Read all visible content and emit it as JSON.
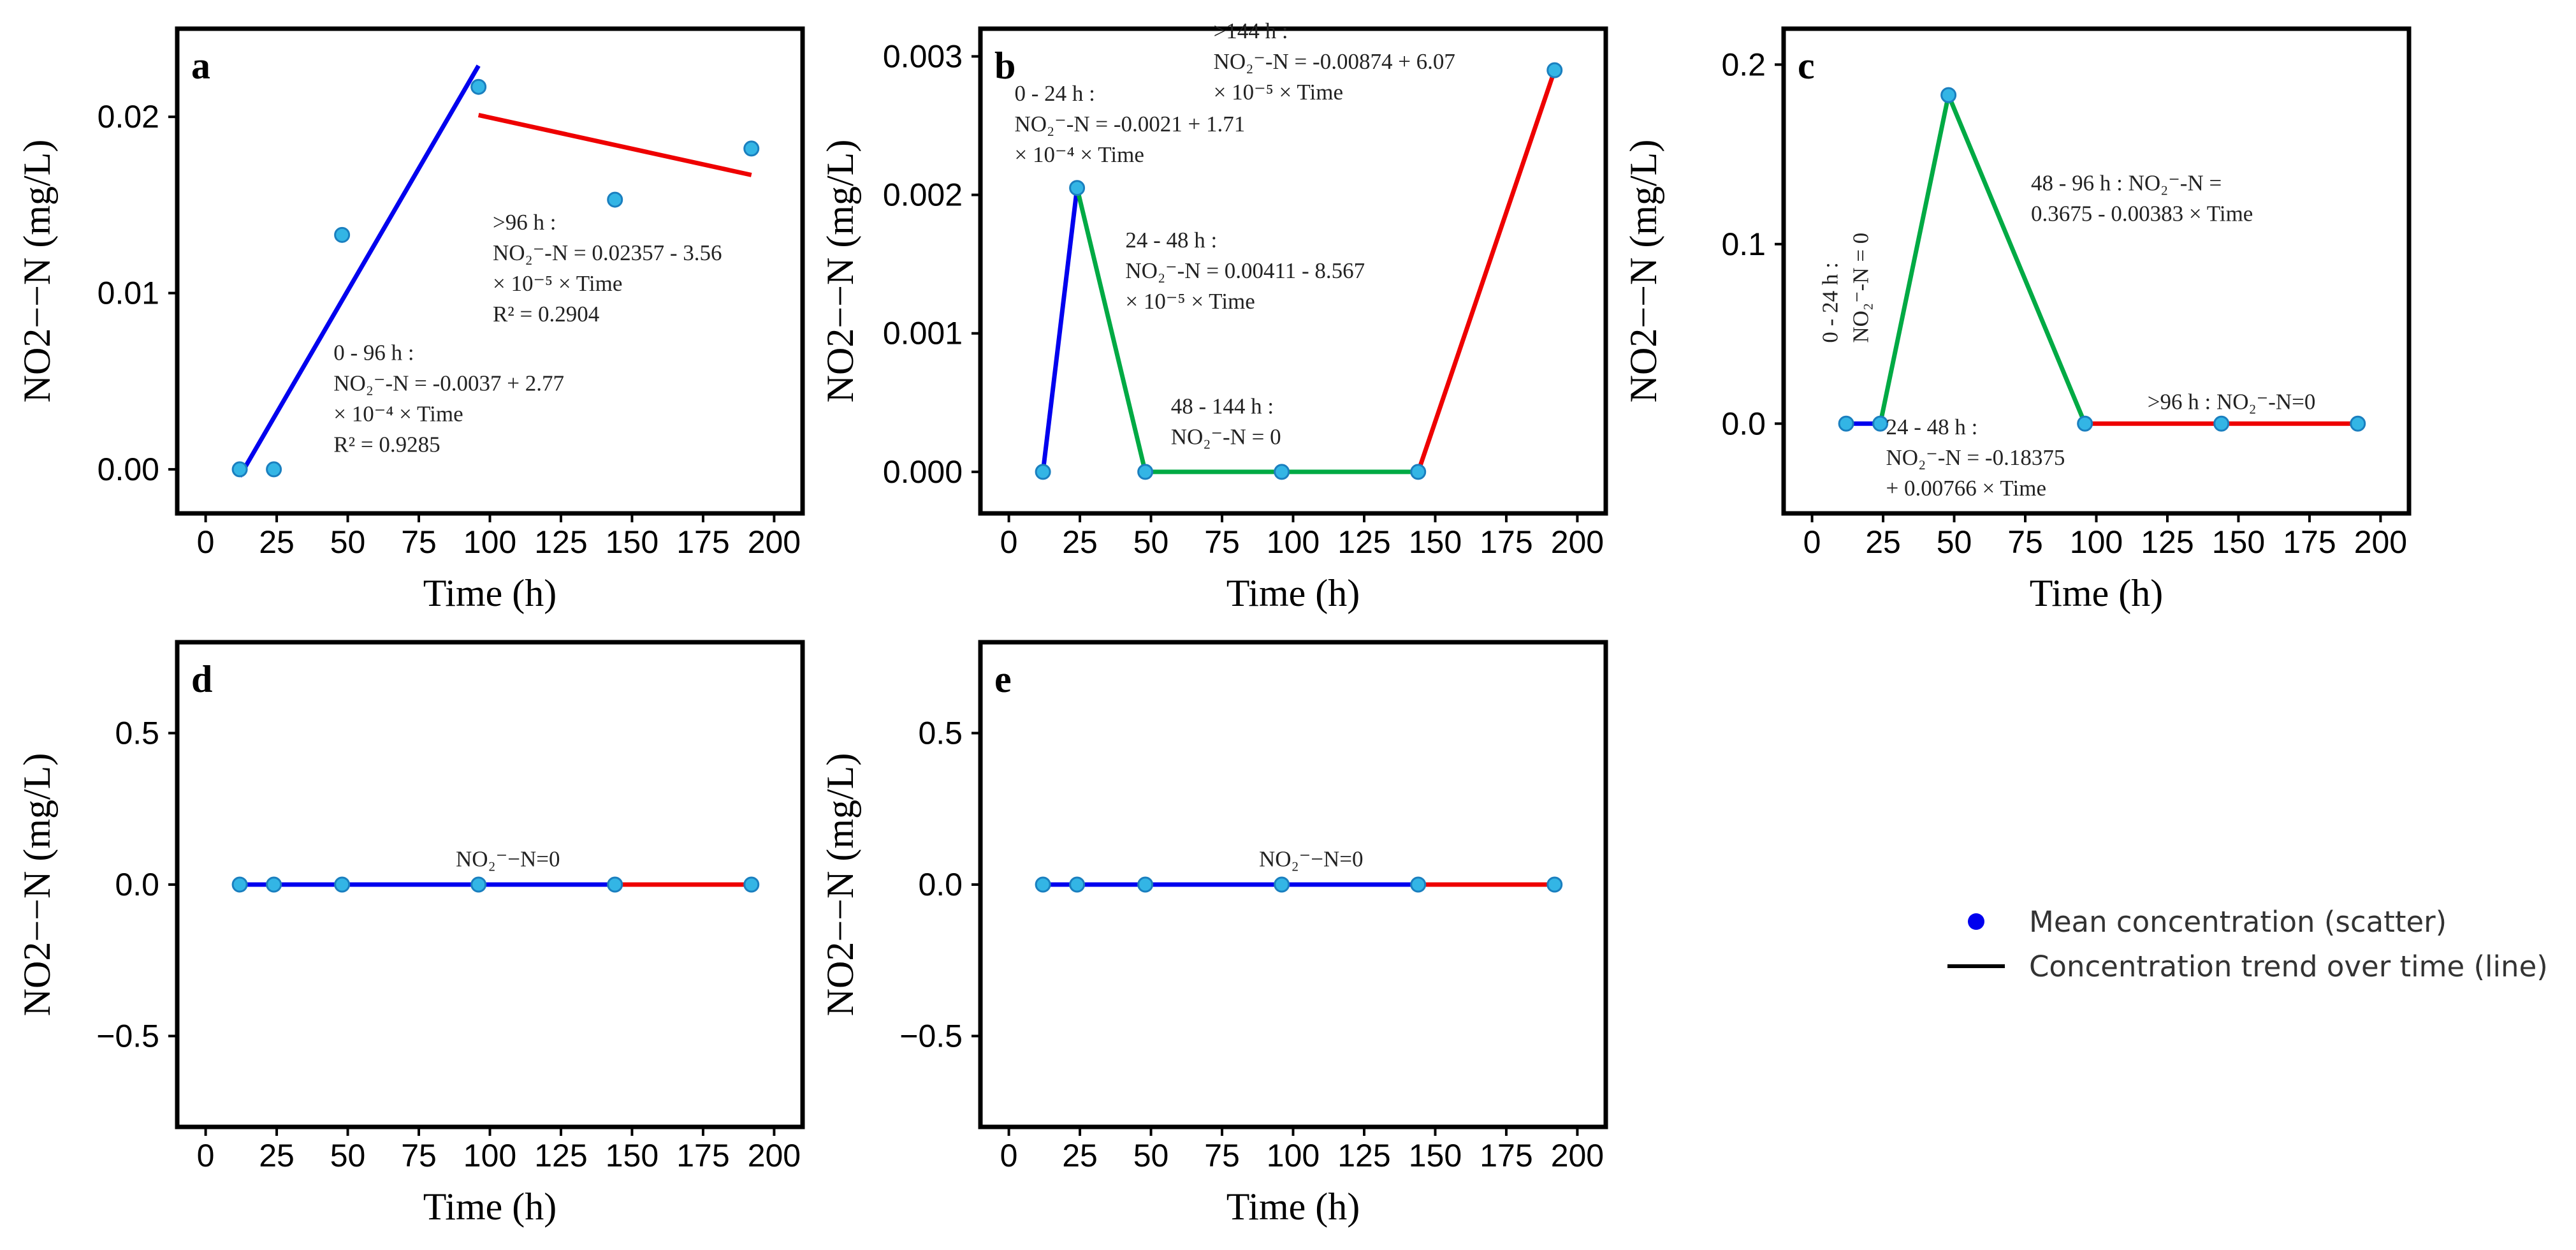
{
  "chart_data": [
    {
      "id": "a",
      "type": "line",
      "panel_label": "a",
      "xlabel": "Time (h)",
      "ylabel": "NO2−−N (mg/L)",
      "xlim": [
        -10,
        210
      ],
      "ylim": [
        -0.0025,
        0.025
      ],
      "xticks": [
        0,
        25,
        50,
        75,
        100,
        125,
        150,
        175,
        200
      ],
      "yticks": [
        0.0,
        0.01,
        0.02
      ],
      "ytick_labels": [
        "0.00",
        "0.01",
        "0.02"
      ],
      "points": {
        "x": [
          12,
          24,
          48,
          96,
          144,
          192
        ],
        "y": [
          0.0,
          0.0,
          0.0133,
          0.0217,
          0.0153,
          0.0182
        ]
      },
      "segments": [
        {
          "color": "#0000ee",
          "x": [
            12,
            96
          ],
          "y": [
            -0.0004,
            0.0229
          ]
        },
        {
          "color": "#ee0000",
          "x": [
            96,
            192
          ],
          "y": [
            0.0201,
            0.0167
          ]
        }
      ],
      "annotations": [
        {
          "lines": [
            "0 - 96 h :",
            "NO₂⁻-N = -0.0037 + 2.77",
            "× 10⁻⁴ × Time",
            "R² = 0.9285"
          ],
          "x": 45,
          "y": 0.0062
        },
        {
          "lines": [
            ">96 h :",
            "NO₂⁻-N = 0.02357 - 3.56",
            "× 10⁻⁵ × Time",
            "R² = 0.2904"
          ],
          "x": 101,
          "y": 0.0136
        }
      ]
    },
    {
      "id": "b",
      "type": "line",
      "panel_label": "b",
      "xlabel": "Time (h)",
      "ylabel": "NO2−−N (mg/L)",
      "xlim": [
        -10,
        210
      ],
      "ylim": [
        -0.0003,
        0.0032
      ],
      "xticks": [
        0,
        25,
        50,
        75,
        100,
        125,
        150,
        175,
        200
      ],
      "yticks": [
        0.0,
        0.001,
        0.002,
        0.003
      ],
      "ytick_labels": [
        "0.000",
        "0.001",
        "0.002",
        "0.003"
      ],
      "points": {
        "x": [
          12,
          24,
          48,
          96,
          144,
          192
        ],
        "y": [
          0.0,
          0.00205,
          0.0,
          0.0,
          0.0,
          0.0029
        ]
      },
      "segments": [
        {
          "color": "#0000ee",
          "x": [
            12,
            24
          ],
          "y": [
            0.0,
            0.00205
          ]
        },
        {
          "color": "#00aa44",
          "x": [
            24,
            48,
            96,
            144
          ],
          "y": [
            0.00205,
            0.0,
            0.0,
            0.0
          ]
        },
        {
          "color": "#ee0000",
          "x": [
            144,
            192
          ],
          "y": [
            0.0,
            0.0029
          ]
        }
      ],
      "annotations": [
        {
          "lines": [
            "0 - 24 h :",
            "NO₂⁻-N = -0.0021 + 1.71",
            "× 10⁻⁴ × Time"
          ],
          "x": 2,
          "y": 0.00268
        },
        {
          "lines": [
            ">144 h :",
            "NO₂⁻-N = -0.00874 + 6.07",
            "× 10⁻⁵ × Time"
          ],
          "x": 72,
          "y": 0.00313
        },
        {
          "lines": [
            "24 - 48 h :",
            "NO₂⁻-N = 0.00411 - 8.567",
            "× 10⁻⁵ × Time"
          ],
          "x": 41,
          "y": 0.00162
        },
        {
          "lines": [
            "48 - 144 h :",
            "NO₂⁻-N = 0"
          ],
          "x": 57,
          "y": 0.00042
        }
      ]
    },
    {
      "id": "c",
      "type": "line",
      "panel_label": "c",
      "xlabel": "Time (h)",
      "ylabel": "NO2−−N (mg/L)",
      "xlim": [
        -10,
        210
      ],
      "ylim": [
        -0.05,
        0.22
      ],
      "xticks": [
        0,
        25,
        50,
        75,
        100,
        125,
        150,
        175,
        200
      ],
      "yticks": [
        0.0,
        0.1,
        0.2
      ],
      "ytick_labels": [
        "0.0",
        "0.1",
        "0.2"
      ],
      "points": {
        "x": [
          12,
          24,
          48,
          96,
          144,
          192
        ],
        "y": [
          0.0,
          0.0,
          0.183,
          0.0,
          0.0,
          0.0
        ]
      },
      "segments": [
        {
          "color": "#0000ee",
          "x": [
            12,
            24
          ],
          "y": [
            0.0,
            0.0
          ]
        },
        {
          "color": "#00aa44",
          "x": [
            24,
            48,
            96
          ],
          "y": [
            0.0,
            0.183,
            0.0
          ]
        },
        {
          "color": "#ee0000",
          "x": [
            96,
            144,
            192
          ],
          "y": [
            0.0,
            0.0,
            0.0
          ]
        }
      ],
      "annotations": [
        {
          "lines": [
            "48 - 96 h :   NO₂⁻-N =",
            "0.3675 - 0.00383 × Time"
          ],
          "x": 77,
          "y": 0.13
        },
        {
          "lines": [
            "24 - 48 h :",
            "NO₂⁻-N = -0.18375",
            "+ 0.00766 × Time"
          ],
          "x": 26,
          "y": -0.006
        },
        {
          "lines": [
            ">96 h : NO₂⁻-N=0"
          ],
          "x": 118,
          "y": 0.008
        }
      ],
      "vertical_annotation": {
        "lines": [
          "0 - 24 h :",
          "NO₂⁻-N = 0"
        ],
        "x": 9,
        "y": 0.045
      }
    },
    {
      "id": "d",
      "type": "line",
      "panel_label": "d",
      "xlabel": "Time (h)",
      "ylabel": "NO2−−N (mg/L)",
      "xlim": [
        -10,
        210
      ],
      "ylim": [
        -0.8,
        0.8
      ],
      "xticks": [
        0,
        25,
        50,
        75,
        100,
        125,
        150,
        175,
        200
      ],
      "yticks": [
        -0.5,
        0.0,
        0.5
      ],
      "ytick_labels": [
        "−0.5",
        "0.0",
        "0.5"
      ],
      "points": {
        "x": [
          12,
          24,
          48,
          96,
          144,
          192
        ],
        "y": [
          0,
          0,
          0,
          0,
          0,
          0
        ]
      },
      "segments": [
        {
          "color": "#0000ee",
          "x": [
            12,
            144
          ],
          "y": [
            0,
            0
          ]
        },
        {
          "color": "#ee0000",
          "x": [
            144,
            192
          ],
          "y": [
            0,
            0
          ]
        }
      ],
      "annotations": [
        {
          "lines": [
            "NO₂⁻−N=0"
          ],
          "x": 88,
          "y": 0.06
        }
      ]
    },
    {
      "id": "e",
      "type": "line",
      "panel_label": "e",
      "xlabel": "Time (h)",
      "ylabel": "NO2−−N (mg/L)",
      "xlim": [
        -10,
        210
      ],
      "ylim": [
        -0.8,
        0.8
      ],
      "xticks": [
        0,
        25,
        50,
        75,
        100,
        125,
        150,
        175,
        200
      ],
      "yticks": [
        -0.5,
        0.0,
        0.5
      ],
      "ytick_labels": [
        "−0.5",
        "0.0",
        "0.5"
      ],
      "points": {
        "x": [
          12,
          24,
          48,
          96,
          144,
          192
        ],
        "y": [
          0,
          0,
          0,
          0,
          0,
          0
        ]
      },
      "segments": [
        {
          "color": "#0000ee",
          "x": [
            12,
            144
          ],
          "y": [
            0,
            0
          ]
        },
        {
          "color": "#ee0000",
          "x": [
            144,
            192
          ],
          "y": [
            0,
            0
          ]
        }
      ],
      "annotations": [
        {
          "lines": [
            "NO₂⁻−N=0"
          ],
          "x": 88,
          "y": 0.06
        }
      ]
    }
  ],
  "legend": {
    "items": [
      {
        "label": "Mean concentration (scatter)",
        "kind": "marker",
        "color": "#0000ee"
      },
      {
        "label": "Concentration trend over time (line)",
        "kind": "line",
        "color": "#000000"
      }
    ],
    "position": "right"
  },
  "style": {
    "point_fill": "#33b5e5",
    "point_stroke": "#1a7fbf"
  }
}
